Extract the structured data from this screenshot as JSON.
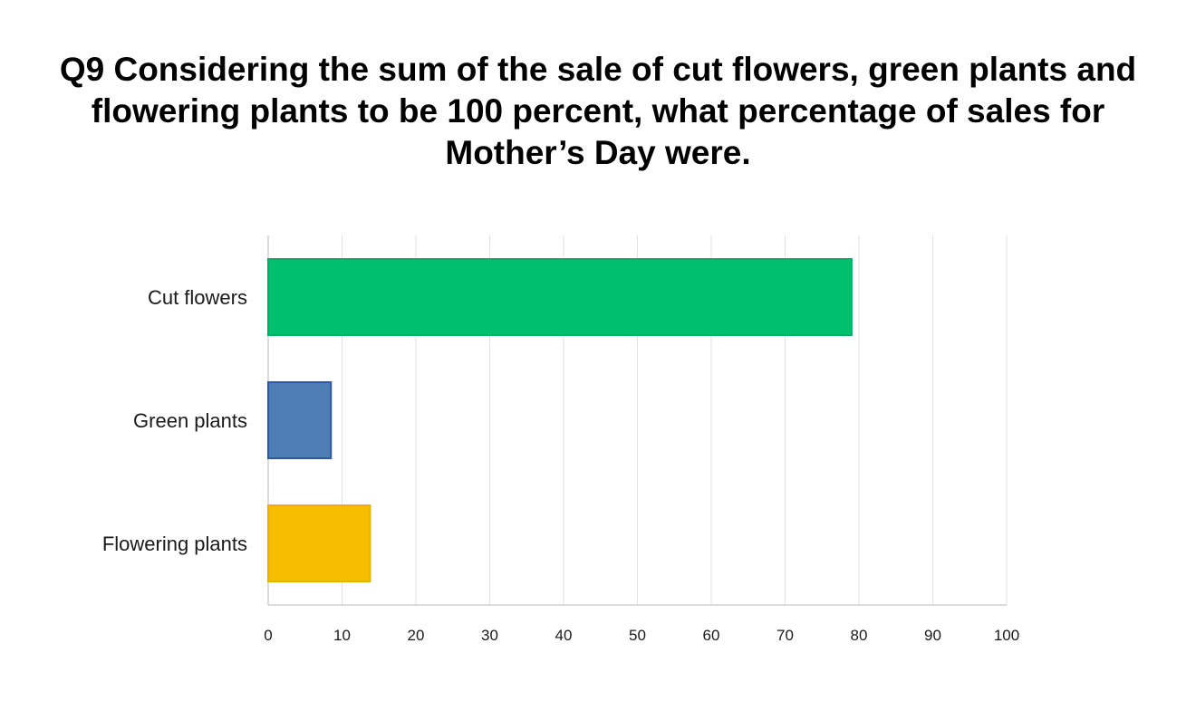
{
  "chart_data": {
    "type": "bar",
    "orientation": "horizontal",
    "title": "Q9 Considering the sum of the sale of cut flowers, green plants and flowering plants to be 100 percent, what percentage of sales for Mother’s Day were.",
    "xlabel": "",
    "ylabel": "",
    "categories": [
      "Cut flowers",
      "Green plants",
      "Flowering plants"
    ],
    "values": [
      79,
      8.5,
      13.8
    ],
    "colors": [
      "#00bf6f",
      "#507cb6",
      "#f7bd00"
    ],
    "border_colors": [
      "#00b068",
      "#2e58a0",
      "#e8b000"
    ],
    "xlim": [
      0,
      100
    ],
    "x_ticks": [
      0,
      10,
      20,
      30,
      40,
      50,
      60,
      70,
      80,
      90,
      100
    ],
    "grid": true,
    "legend": "none"
  }
}
